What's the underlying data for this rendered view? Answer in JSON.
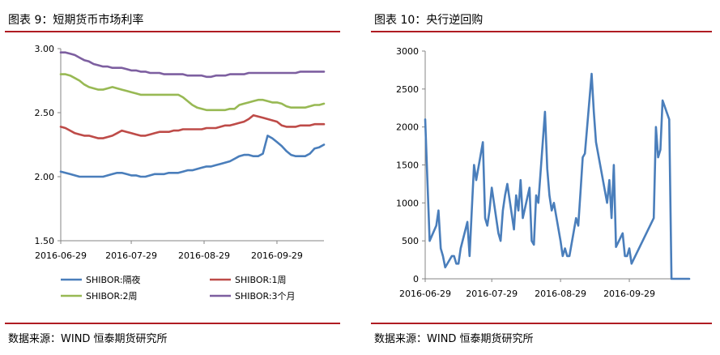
{
  "left": {
    "title": "图表 9：短期货币市场利率",
    "source": "数据来源：WIND 恒泰期货研究所"
  },
  "right": {
    "title": "图表 10：央行逆回购",
    "source": "数据来源：WIND 恒泰期货研究所"
  },
  "chart_data": [
    {
      "type": "line",
      "title": "",
      "x": [
        "2016-06-29",
        "2016-07-01",
        "2016-07-03",
        "2016-07-05",
        "2016-07-07",
        "2016-07-09",
        "2016-07-11",
        "2016-07-13",
        "2016-07-15",
        "2016-07-17",
        "2016-07-19",
        "2016-07-21",
        "2016-07-23",
        "2016-07-25",
        "2016-07-27",
        "2016-07-29",
        "2016-07-31",
        "2016-08-02",
        "2016-08-04",
        "2016-08-06",
        "2016-08-08",
        "2016-08-10",
        "2016-08-12",
        "2016-08-14",
        "2016-08-16",
        "2016-08-18",
        "2016-08-20",
        "2016-08-22",
        "2016-08-24",
        "2016-08-26",
        "2016-08-28",
        "2016-08-30",
        "2016-09-01",
        "2016-09-03",
        "2016-09-05",
        "2016-09-07",
        "2016-09-09",
        "2016-09-11",
        "2016-09-13",
        "2016-09-15",
        "2016-09-17",
        "2016-09-19",
        "2016-09-21",
        "2016-09-23",
        "2016-09-25",
        "2016-09-27",
        "2016-09-29",
        "2016-10-01",
        "2016-10-03",
        "2016-10-05",
        "2016-10-07",
        "2016-10-09",
        "2016-10-11",
        "2016-10-13",
        "2016-10-15",
        "2016-10-17",
        "2016-10-19"
      ],
      "xticks": [
        "2016-06-29",
        "2016-07-29",
        "2016-08-29",
        "2016-09-29"
      ],
      "yticks": [
        "1.50",
        "2.00",
        "2.50",
        "3.00"
      ],
      "ylim": [
        1.5,
        3.0
      ],
      "series": [
        {
          "name": "SHIBOR:隔夜",
          "color": "#4a7ebb",
          "values": [
            2.04,
            2.03,
            2.02,
            2.01,
            2.0,
            2.0,
            2.0,
            2.0,
            2.0,
            2.0,
            2.01,
            2.02,
            2.03,
            2.03,
            2.02,
            2.01,
            2.01,
            2.0,
            2.0,
            2.01,
            2.02,
            2.02,
            2.02,
            2.03,
            2.03,
            2.03,
            2.04,
            2.05,
            2.05,
            2.06,
            2.07,
            2.08,
            2.08,
            2.09,
            2.1,
            2.11,
            2.12,
            2.14,
            2.16,
            2.17,
            2.17,
            2.16,
            2.16,
            2.18,
            2.32,
            2.3,
            2.27,
            2.24,
            2.2,
            2.17,
            2.16,
            2.16,
            2.16,
            2.18,
            2.22,
            2.23,
            2.25
          ]
        },
        {
          "name": "SHIBOR:1周",
          "color": "#be4b48",
          "values": [
            2.39,
            2.38,
            2.36,
            2.34,
            2.33,
            2.32,
            2.32,
            2.31,
            2.3,
            2.3,
            2.31,
            2.32,
            2.34,
            2.36,
            2.35,
            2.34,
            2.33,
            2.32,
            2.32,
            2.33,
            2.34,
            2.35,
            2.35,
            2.35,
            2.36,
            2.36,
            2.37,
            2.37,
            2.37,
            2.37,
            2.37,
            2.38,
            2.38,
            2.38,
            2.39,
            2.4,
            2.4,
            2.41,
            2.42,
            2.43,
            2.45,
            2.48,
            2.47,
            2.46,
            2.45,
            2.44,
            2.43,
            2.4,
            2.39,
            2.39,
            2.39,
            2.4,
            2.4,
            2.4,
            2.41,
            2.41,
            2.41
          ]
        },
        {
          "name": "SHIBOR:2周",
          "color": "#98b954",
          "values": [
            2.8,
            2.8,
            2.79,
            2.77,
            2.75,
            2.72,
            2.7,
            2.69,
            2.68,
            2.68,
            2.69,
            2.7,
            2.69,
            2.68,
            2.67,
            2.66,
            2.65,
            2.64,
            2.64,
            2.64,
            2.64,
            2.64,
            2.64,
            2.64,
            2.64,
            2.64,
            2.62,
            2.59,
            2.56,
            2.54,
            2.53,
            2.52,
            2.52,
            2.52,
            2.52,
            2.52,
            2.53,
            2.53,
            2.56,
            2.57,
            2.58,
            2.59,
            2.6,
            2.6,
            2.59,
            2.58,
            2.58,
            2.57,
            2.55,
            2.54,
            2.54,
            2.54,
            2.54,
            2.55,
            2.56,
            2.56,
            2.57
          ]
        },
        {
          "name": "SHIBOR:3个月",
          "color": "#7d5fa0",
          "values": [
            2.97,
            2.97,
            2.96,
            2.95,
            2.93,
            2.91,
            2.9,
            2.88,
            2.87,
            2.86,
            2.86,
            2.85,
            2.85,
            2.85,
            2.84,
            2.83,
            2.83,
            2.82,
            2.82,
            2.81,
            2.81,
            2.81,
            2.8,
            2.8,
            2.8,
            2.8,
            2.8,
            2.79,
            2.79,
            2.79,
            2.79,
            2.78,
            2.78,
            2.79,
            2.79,
            2.79,
            2.8,
            2.8,
            2.8,
            2.8,
            2.81,
            2.81,
            2.81,
            2.81,
            2.81,
            2.81,
            2.81,
            2.81,
            2.81,
            2.81,
            2.81,
            2.82,
            2.82,
            2.82,
            2.82,
            2.82,
            2.82
          ]
        }
      ],
      "legend": "bottom"
    },
    {
      "type": "line",
      "title": "",
      "x": [
        "2016-06-29",
        "2016-06-30",
        "2016-07-01",
        "2016-07-04",
        "2016-07-05",
        "2016-07-06",
        "2016-07-07",
        "2016-07-08",
        "2016-07-11",
        "2016-07-12",
        "2016-07-13",
        "2016-07-14",
        "2016-07-15",
        "2016-07-18",
        "2016-07-19",
        "2016-07-20",
        "2016-07-21",
        "2016-07-22",
        "2016-07-25",
        "2016-07-26",
        "2016-07-27",
        "2016-07-28",
        "2016-07-29",
        "2016-08-01",
        "2016-08-02",
        "2016-08-03",
        "2016-08-04",
        "2016-08-05",
        "2016-08-08",
        "2016-08-09",
        "2016-08-10",
        "2016-08-11",
        "2016-08-12",
        "2016-08-15",
        "2016-08-16",
        "2016-08-17",
        "2016-08-18",
        "2016-08-19",
        "2016-08-22",
        "2016-08-23",
        "2016-08-24",
        "2016-08-25",
        "2016-08-26",
        "2016-08-29",
        "2016-08-30",
        "2016-08-31",
        "2016-09-01",
        "2016-09-02",
        "2016-09-05",
        "2016-09-06",
        "2016-09-07",
        "2016-09-08",
        "2016-09-09",
        "2016-09-12",
        "2016-09-13",
        "2016-09-14",
        "2016-09-19",
        "2016-09-20",
        "2016-09-21",
        "2016-09-22",
        "2016-09-23",
        "2016-09-26",
        "2016-09-27",
        "2016-09-28",
        "2016-09-29",
        "2016-09-30",
        "2016-10-10",
        "2016-10-11",
        "2016-10-12",
        "2016-10-13",
        "2016-10-14",
        "2016-10-17",
        "2016-10-18",
        "2016-10-19",
        "2016-10-20",
        "2016-10-21",
        "2016-10-24",
        "2016-10-25",
        "2016-10-26"
      ],
      "xticks": [
        "2016-06-29",
        "2016-07-29",
        "2016-08-29",
        "2016-09-29"
      ],
      "yticks": [
        "0",
        "500",
        "1000",
        "1500",
        "2000",
        "2500",
        "3000"
      ],
      "ylim": [
        0,
        3000
      ],
      "series": [
        {
          "name": "",
          "color": "#4a7ebb",
          "values": [
            2100,
            1300,
            500,
            700,
            900,
            400,
            300,
            150,
            300,
            300,
            200,
            200,
            400,
            750,
            300,
            900,
            1500,
            1300,
            1800,
            800,
            700,
            900,
            1200,
            600,
            500,
            900,
            1100,
            1250,
            650,
            1100,
            900,
            1300,
            800,
            1200,
            500,
            450,
            1100,
            1000,
            2200,
            1450,
            1100,
            900,
            1000,
            500,
            300,
            400,
            300,
            300,
            800,
            700,
            1150,
            1600,
            1650,
            2700,
            2200,
            1800,
            1000,
            1300,
            800,
            1500,
            420,
            600,
            300,
            300,
            400,
            200,
            800,
            2000,
            1600,
            1700,
            2350,
            2100,
            0,
            0,
            0,
            0,
            0,
            0,
            0
          ]
        }
      ]
    }
  ]
}
